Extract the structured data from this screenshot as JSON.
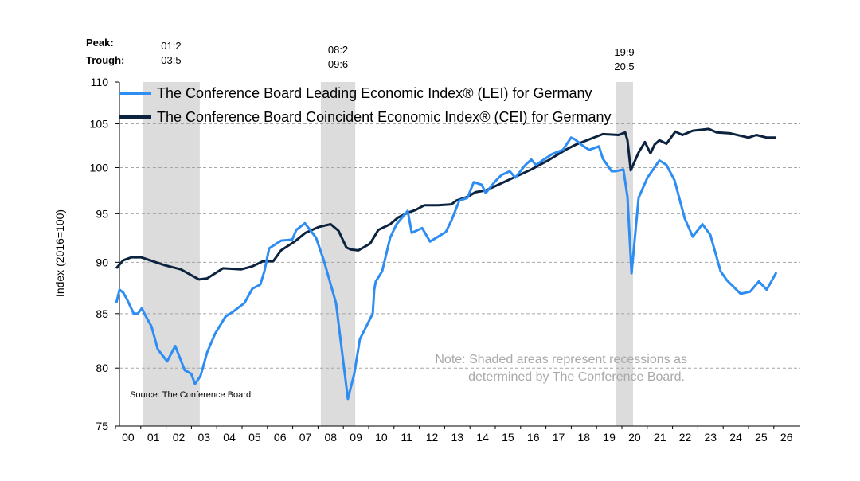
{
  "chart_data": {
    "type": "line",
    "title": "",
    "ylabel": "Index (2016=100)",
    "xlabel": "",
    "yscale": "log",
    "ylim": [
      75,
      110
    ],
    "yticks": [
      75,
      80,
      85,
      90,
      95,
      100,
      105,
      110
    ],
    "gridlines": [
      80,
      85,
      90,
      95,
      100,
      105
    ],
    "xlim": [
      2000,
      2026.5
    ],
    "xtick_labels": [
      "00",
      "01",
      "02",
      "03",
      "04",
      "05",
      "06",
      "07",
      "08",
      "09",
      "10",
      "11",
      "12",
      "13",
      "14",
      "15",
      "16",
      "17",
      "18",
      "19",
      "20",
      "21",
      "22",
      "23",
      "24",
      "25",
      "26"
    ],
    "legend_placement": "top-left",
    "peak_label": "Peak:",
    "trough_label": "Trough:",
    "recessions": [
      {
        "peak": "01:2",
        "trough": "03:5",
        "start": 2001.07,
        "end": 2003.33
      },
      {
        "peak": "08:2",
        "trough": "09:6",
        "start": 2008.11,
        "end": 2009.47
      },
      {
        "peak": "19:9",
        "trough": "20:5",
        "start": 2019.75,
        "end": 2020.44
      }
    ],
    "series": [
      {
        "name": "The Conference Board Leading Economic Index® (LEI) for Germany",
        "color": "#2e8df2",
        "points": [
          [
            2000.03,
            86.0
          ],
          [
            2000.16,
            87.3
          ],
          [
            2000.31,
            87.0
          ],
          [
            2000.47,
            86.3
          ],
          [
            2000.72,
            85.0
          ],
          [
            2000.88,
            85.0
          ],
          [
            2001.04,
            85.5
          ],
          [
            2001.19,
            84.8
          ],
          [
            2001.42,
            83.8
          ],
          [
            2001.67,
            81.7
          ],
          [
            2002.04,
            80.6
          ],
          [
            2002.36,
            82.0
          ],
          [
            2002.74,
            79.8
          ],
          [
            2002.99,
            79.5
          ],
          [
            2003.14,
            78.6
          ],
          [
            2003.36,
            79.3
          ],
          [
            2003.62,
            81.4
          ],
          [
            2003.93,
            83.1
          ],
          [
            2004.34,
            84.7
          ],
          [
            2004.65,
            85.2
          ],
          [
            2005.09,
            86.0
          ],
          [
            2005.41,
            87.4
          ],
          [
            2005.72,
            87.8
          ],
          [
            2005.88,
            89.1
          ],
          [
            2006.07,
            91.4
          ],
          [
            2006.54,
            92.2
          ],
          [
            2006.98,
            92.3
          ],
          [
            2007.14,
            93.3
          ],
          [
            2007.48,
            94.0
          ],
          [
            2007.92,
            92.5
          ],
          [
            2008.24,
            90.1
          ],
          [
            2008.71,
            86.0
          ],
          [
            2009.18,
            77.3
          ],
          [
            2009.43,
            79.5
          ],
          [
            2009.65,
            82.6
          ],
          [
            2010.16,
            85.0
          ],
          [
            2010.22,
            87.3
          ],
          [
            2010.28,
            88.1
          ],
          [
            2010.53,
            89.1
          ],
          [
            2010.85,
            92.5
          ],
          [
            2011.1,
            93.9
          ],
          [
            2011.54,
            95.3
          ],
          [
            2011.7,
            93.0
          ],
          [
            2012.11,
            93.5
          ],
          [
            2012.42,
            92.1
          ],
          [
            2012.74,
            92.6
          ],
          [
            2013.05,
            93.1
          ],
          [
            2013.27,
            94.3
          ],
          [
            2013.58,
            96.4
          ],
          [
            2013.9,
            96.7
          ],
          [
            2014.15,
            98.4
          ],
          [
            2014.47,
            98.1
          ],
          [
            2014.62,
            97.2
          ],
          [
            2015.0,
            98.5
          ],
          [
            2015.25,
            99.2
          ],
          [
            2015.57,
            99.6
          ],
          [
            2015.79,
            98.9
          ],
          [
            2016.19,
            100.3
          ],
          [
            2016.42,
            100.9
          ],
          [
            2016.6,
            100.3
          ],
          [
            2017.23,
            101.5
          ],
          [
            2017.67,
            102.0
          ],
          [
            2017.99,
            103.4
          ],
          [
            2018.14,
            103.2
          ],
          [
            2018.49,
            102.4
          ],
          [
            2018.71,
            102.0
          ],
          [
            2019.09,
            102.4
          ],
          [
            2019.25,
            101.0
          ],
          [
            2019.59,
            99.6
          ],
          [
            2019.75,
            99.6
          ],
          [
            2020.06,
            99.8
          ],
          [
            2020.22,
            96.8
          ],
          [
            2020.38,
            88.9
          ],
          [
            2020.66,
            96.7
          ],
          [
            2021.01,
            98.9
          ],
          [
            2021.48,
            100.8
          ],
          [
            2021.76,
            100.3
          ],
          [
            2022.08,
            98.6
          ],
          [
            2022.48,
            94.5
          ],
          [
            2022.8,
            92.6
          ],
          [
            2023.18,
            93.9
          ],
          [
            2023.49,
            92.8
          ],
          [
            2023.9,
            89.1
          ],
          [
            2024.15,
            88.2
          ],
          [
            2024.69,
            86.9
          ],
          [
            2025.06,
            87.1
          ],
          [
            2025.41,
            88.1
          ],
          [
            2025.72,
            87.3
          ],
          [
            2026.1,
            89.0
          ]
        ]
      },
      {
        "name": "The Conference Board Coincident Economic Index® (CEI) for Germany",
        "color": "#0c2340",
        "points": [
          [
            2000.03,
            89.4
          ],
          [
            2000.31,
            90.2
          ],
          [
            2000.63,
            90.5
          ],
          [
            2001.01,
            90.5
          ],
          [
            2001.95,
            89.7
          ],
          [
            2002.58,
            89.3
          ],
          [
            2003.3,
            88.3
          ],
          [
            2003.62,
            88.4
          ],
          [
            2004.25,
            89.4
          ],
          [
            2004.97,
            89.3
          ],
          [
            2005.41,
            89.6
          ],
          [
            2005.82,
            90.1
          ],
          [
            2006.23,
            90.1
          ],
          [
            2006.54,
            91.2
          ],
          [
            2007.08,
            92.1
          ],
          [
            2007.5,
            93.0
          ],
          [
            2008.02,
            93.6
          ],
          [
            2008.5,
            93.9
          ],
          [
            2008.81,
            93.2
          ],
          [
            2009.12,
            91.5
          ],
          [
            2009.28,
            91.3
          ],
          [
            2009.59,
            91.2
          ],
          [
            2010.06,
            91.9
          ],
          [
            2010.38,
            93.3
          ],
          [
            2010.85,
            93.9
          ],
          [
            2011.16,
            94.6
          ],
          [
            2011.54,
            95.1
          ],
          [
            2011.86,
            95.4
          ],
          [
            2012.2,
            95.9
          ],
          [
            2012.74,
            95.9
          ],
          [
            2013.27,
            96.0
          ],
          [
            2013.46,
            96.4
          ],
          [
            2013.9,
            96.8
          ],
          [
            2014.21,
            97.3
          ],
          [
            2014.62,
            97.5
          ],
          [
            2015.03,
            98.0
          ],
          [
            2015.57,
            98.7
          ],
          [
            2016.42,
            99.8
          ],
          [
            2017.14,
            100.9
          ],
          [
            2017.77,
            102.0
          ],
          [
            2018.18,
            102.6
          ],
          [
            2018.71,
            103.2
          ],
          [
            2019.25,
            103.8
          ],
          [
            2019.87,
            103.7
          ],
          [
            2020.13,
            104.0
          ],
          [
            2020.22,
            103.1
          ],
          [
            2020.35,
            99.7
          ],
          [
            2020.66,
            101.7
          ],
          [
            2020.91,
            102.9
          ],
          [
            2021.13,
            101.6
          ],
          [
            2021.29,
            102.6
          ],
          [
            2021.48,
            103.1
          ],
          [
            2021.76,
            102.7
          ],
          [
            2022.11,
            104.1
          ],
          [
            2022.39,
            103.7
          ],
          [
            2022.8,
            104.2
          ],
          [
            2023.43,
            104.4
          ],
          [
            2023.74,
            104.0
          ],
          [
            2024.28,
            103.9
          ],
          [
            2025.0,
            103.4
          ],
          [
            2025.31,
            103.7
          ],
          [
            2025.72,
            103.4
          ],
          [
            2026.1,
            103.4
          ]
        ]
      }
    ],
    "note_lines": [
      "Note: Shaded areas represent recessions as",
      "determined by The Conference Board."
    ],
    "source": "Source: The Conference Board",
    "shade_color": "#dcdcdc",
    "grid_color": "#a6a6a6"
  }
}
